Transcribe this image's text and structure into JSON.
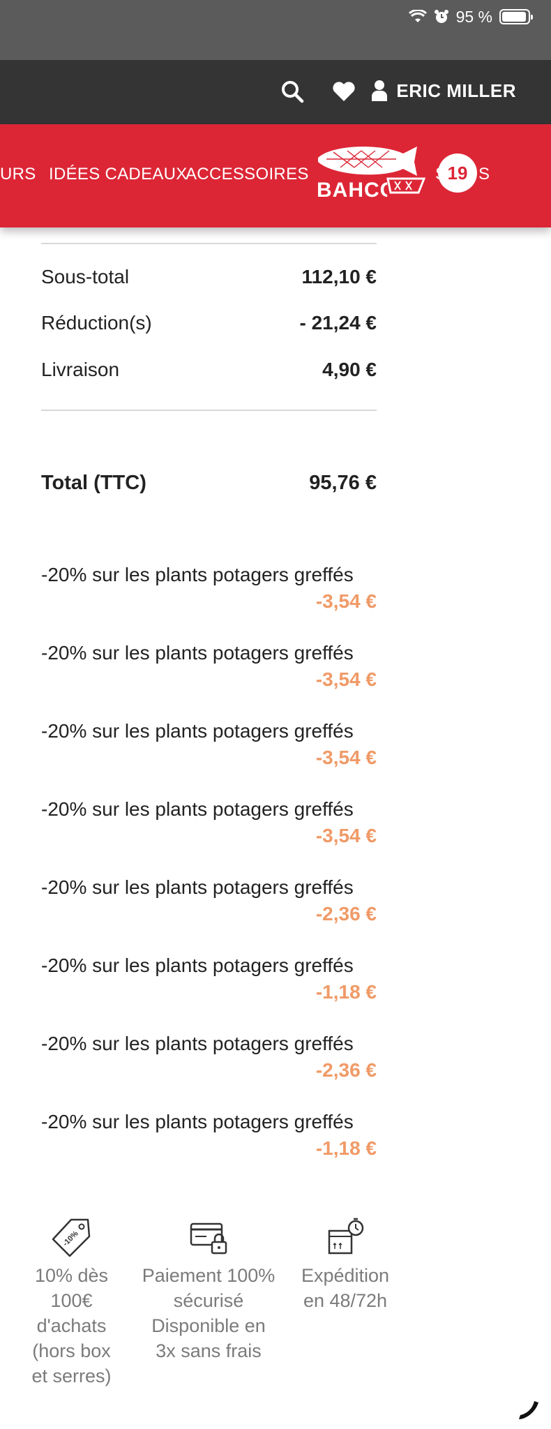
{
  "status_bar": {
    "battery_text": "95 %",
    "battery_level": 0.95
  },
  "header": {
    "user_name": "ERIC MILLER"
  },
  "nav": {
    "items": [
      "URS",
      "IDÉES CADEAUX",
      "ACCESSOIRES",
      "S",
      "S"
    ],
    "logo_text": "BAHCO",
    "cart_count": "19"
  },
  "summary": {
    "subtotal_label": "Sous-total",
    "subtotal_value": "112,10 €",
    "reduction_label": "Réduction(s)",
    "reduction_value": "- 21,24 €",
    "shipping_label": "Livraison",
    "shipping_value": "4,90 €",
    "total_label": "Total (TTC)",
    "total_value": "95,76 €"
  },
  "discounts": [
    {
      "label": "-20% sur les plants potagers greffés",
      "value": "-3,54 €"
    },
    {
      "label": "-20% sur les plants potagers greffés",
      "value": "-3,54 €"
    },
    {
      "label": "-20% sur les plants potagers greffés",
      "value": "-3,54 €"
    },
    {
      "label": "-20% sur les plants potagers greffés",
      "value": "-3,54 €"
    },
    {
      "label": "-20% sur les plants potagers greffés",
      "value": "-2,36 €"
    },
    {
      "label": "-20% sur les plants potagers greffés",
      "value": "-1,18 €"
    },
    {
      "label": "-20% sur les plants potagers greffés",
      "value": "-2,36 €"
    },
    {
      "label": "-20% sur les plants potagers greffés",
      "value": "-1,18 €"
    }
  ],
  "features": [
    {
      "icon": "price-tag-icon",
      "tag_text": "-10%",
      "lines": [
        "10% dès",
        "100€",
        "d'achats",
        "(hors box",
        "et serres)"
      ]
    },
    {
      "icon": "secure-card-icon",
      "lines": [
        "Paiement 100%",
        "sécurisé",
        "Disponible en",
        "3x sans frais"
      ]
    },
    {
      "icon": "shipping-box-icon",
      "lines": [
        "Expédition",
        "en 48/72h"
      ]
    }
  ],
  "colors": {
    "accent_red": "#dc2636",
    "discount_orange": "#f09a67",
    "header_dark": "#343434"
  }
}
